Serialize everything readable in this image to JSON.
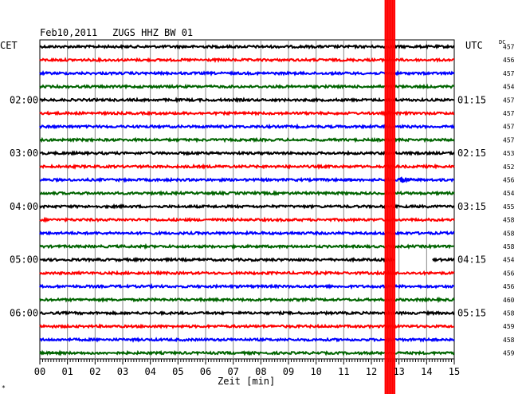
{
  "header": {
    "date": "Feb10,2011",
    "station": "ZUGS HHZ BW 01",
    "left_tz": "CET",
    "right_tz": "UTC",
    "dc_label": "DC"
  },
  "chart_data": {
    "type": "line",
    "title": "Feb10,2011   ZUGS HHZ BW 01",
    "xlabel": "Zeit [min]",
    "ylabel": "",
    "xlim": [
      0,
      15
    ],
    "x_ticks": [
      "00",
      "01",
      "02",
      "03",
      "04",
      "05",
      "06",
      "07",
      "08",
      "09",
      "10",
      "11",
      "12",
      "13",
      "14",
      "15"
    ],
    "grid": true,
    "trace_colors": [
      "#000000",
      "#ff0000",
      "#0000ff",
      "#006400"
    ],
    "left_time_labels": [
      {
        "trace": 4,
        "text": "02:00"
      },
      {
        "trace": 8,
        "text": "03:00"
      },
      {
        "trace": 12,
        "text": "04:00"
      },
      {
        "trace": 16,
        "text": "05:00"
      },
      {
        "trace": 20,
        "text": "06:00"
      }
    ],
    "right_time_labels": [
      {
        "trace": 4,
        "text": "01:15"
      },
      {
        "trace": 8,
        "text": "02:15"
      },
      {
        "trace": 12,
        "text": "03:15"
      },
      {
        "trace": 16,
        "text": "04:15"
      },
      {
        "trace": 20,
        "text": "05:15"
      }
    ],
    "dc_offsets": [
      "457",
      "456",
      "457",
      "454",
      "457",
      "457",
      "457",
      "457",
      "453",
      "452",
      "456",
      "454",
      "455",
      "458",
      "458",
      "458",
      "454",
      "456",
      "456",
      "460",
      "458",
      "459",
      "458",
      "459"
    ],
    "events": [
      {
        "trace": 10,
        "x_start": 11.0,
        "x_end": 11.9,
        "amplitude": 3.5
      },
      {
        "trace": 10,
        "x_start": 13.0,
        "x_end": 14.0,
        "amplitude": 5.5
      },
      {
        "trace": 22,
        "x_start": 14.2,
        "x_end": 14.6,
        "amplitude": 3.0
      },
      {
        "trace": 23,
        "x_start": 0.0,
        "x_end": 1.4,
        "amplitude": 2.5
      }
    ],
    "saturation": {
      "x_start": 12.5,
      "x_end": 12.85,
      "color": "#ff0000"
    },
    "gap": {
      "trace": 16,
      "x_start": 12.85,
      "x_end": 14.2
    }
  },
  "footer": {
    "corner_mark": "*"
  }
}
